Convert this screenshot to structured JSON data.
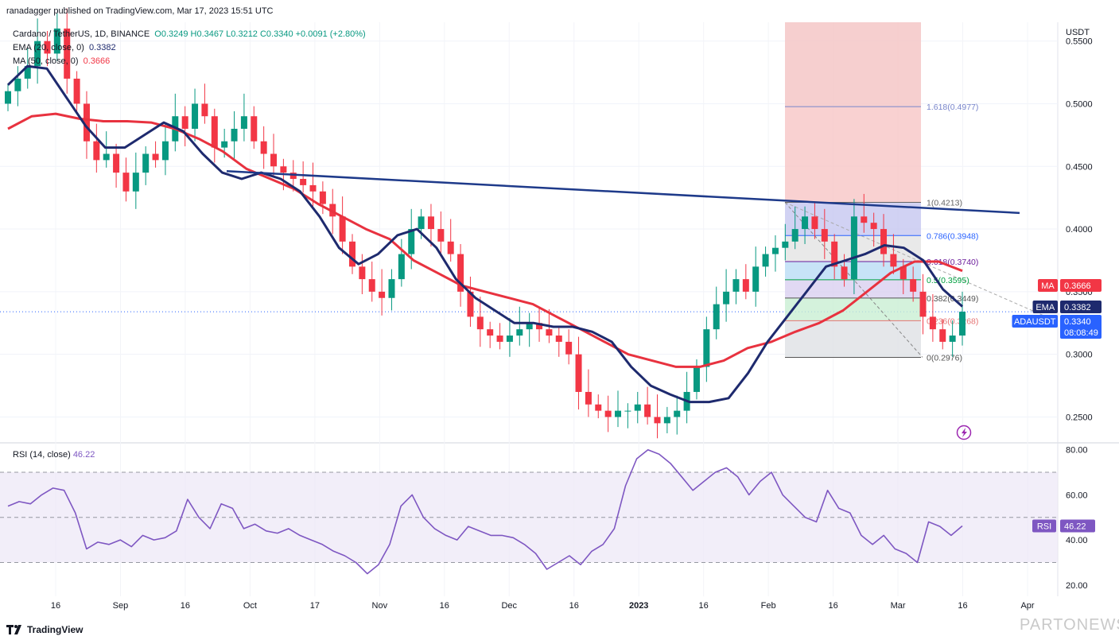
{
  "header": {
    "published": "ranadagger published on TradingView.com, Mar 17, 2023 15:51 UTC"
  },
  "legend": {
    "symbol": "Cardano / TetherUS, 1D, BINANCE",
    "ohlc": "O0.3249 H0.3467 L0.3212 C0.3340 +0.0091 (+2.80%)",
    "ema_label": "EMA (20, close, 0)",
    "ema_value": "0.3382",
    "ma_label": "MA (50, close, 0)",
    "ma_value": "0.3666"
  },
  "rsi_legend": {
    "label": "RSI (14, close)",
    "value": "46.22"
  },
  "branding": {
    "name": "TradingView",
    "watermark": "PARTONEWS.IR"
  },
  "colors": {
    "up": "#089981",
    "down": "#f23645",
    "ema": "#1e2a6e",
    "ma": "#e8323f",
    "trendline": "#1e3a8a",
    "rsi": "#7e57c2",
    "rsi_band": "#ede7f6"
  },
  "chart_data": [
    {
      "type": "candlestick",
      "title": "Cardano / TetherUS, 1D, BINANCE",
      "y_axis_unit": "USDT",
      "y_ticks": [
        "0.5500",
        "0.5000",
        "0.4500",
        "0.4000",
        "0.3500",
        "0.3000",
        "0.2500"
      ],
      "ylim": [
        0.23,
        0.565
      ],
      "x_ticks": [
        "16",
        "Sep",
        "16",
        "Oct",
        "17",
        "Nov",
        "16",
        "Dec",
        "16",
        "2023",
        "16",
        "Feb",
        "16",
        "Mar",
        "16",
        "Apr"
      ],
      "last_close": 0.334,
      "price_tags": [
        {
          "label": "MA",
          "value": "0.3666",
          "color": "#f23645"
        },
        {
          "label": "EMA",
          "value": "0.3382",
          "color": "#1e2a6e"
        },
        {
          "label": "ADAUSDT",
          "value": "0.3340",
          "countdown": "08:08:49",
          "color": "#2962ff"
        }
      ],
      "series": [
        {
          "name": "EMA",
          "values": [
            0.515,
            0.53,
            0.528,
            0.505,
            0.482,
            0.465,
            0.465,
            0.475,
            0.485,
            0.478,
            0.46,
            0.445,
            0.44,
            0.445,
            0.44,
            0.43,
            0.41,
            0.385,
            0.372,
            0.38,
            0.395,
            0.4,
            0.385,
            0.36,
            0.345,
            0.335,
            0.325,
            0.325,
            0.322,
            0.322,
            0.318,
            0.31,
            0.29,
            0.275,
            0.268,
            0.262,
            0.262,
            0.265,
            0.285,
            0.31,
            0.33,
            0.35,
            0.37,
            0.375,
            0.38,
            0.387,
            0.385,
            0.375,
            0.352,
            0.3382
          ]
        },
        {
          "name": "MA",
          "values": [
            0.48,
            0.49,
            0.492,
            0.488,
            0.486,
            0.486,
            0.485,
            0.48,
            0.472,
            0.462,
            0.448,
            0.44,
            0.432,
            0.42,
            0.41,
            0.4,
            0.392,
            0.375,
            0.365,
            0.355,
            0.35,
            0.345,
            0.34,
            0.33,
            0.32,
            0.31,
            0.3,
            0.295,
            0.29,
            0.29,
            0.295,
            0.305,
            0.31,
            0.318,
            0.325,
            0.335,
            0.35,
            0.365,
            0.374,
            0.374,
            0.3666
          ]
        }
      ],
      "trendline": [
        [
          0.4462,
          0.4128
        ]
      ],
      "fibonacci": [
        {
          "label": "1.618(0.4977)",
          "value": 0.4977
        },
        {
          "label": "1(0.4213)",
          "value": 0.4213
        },
        {
          "label": "0.786(0.3948)",
          "value": 0.3948
        },
        {
          "label": "0.618(0.3740)",
          "value": 0.374
        },
        {
          "label": "0.5(0.3595)",
          "value": 0.3595
        },
        {
          "label": "0.382(0.3449)",
          "value": 0.3449
        },
        {
          "label": "0.236(0.3268)",
          "value": 0.3268
        },
        {
          "label": "0(0.2976)",
          "value": 0.2976
        }
      ],
      "candles": [
        0.51,
        0.52,
        0.53,
        0.55,
        0.54,
        0.56,
        0.52,
        0.5,
        0.47,
        0.455,
        0.46,
        0.445,
        0.43,
        0.445,
        0.46,
        0.455,
        0.47,
        0.49,
        0.48,
        0.5,
        0.49,
        0.465,
        0.47,
        0.48,
        0.49,
        0.47,
        0.46,
        0.45,
        0.445,
        0.44,
        0.435,
        0.43,
        0.42,
        0.41,
        0.39,
        0.37,
        0.36,
        0.35,
        0.345,
        0.36,
        0.38,
        0.4,
        0.41,
        0.4,
        0.39,
        0.38,
        0.35,
        0.33,
        0.32,
        0.315,
        0.31,
        0.315,
        0.32,
        0.325,
        0.32,
        0.315,
        0.31,
        0.3,
        0.27,
        0.26,
        0.255,
        0.25,
        0.255,
        0.255,
        0.26,
        0.25,
        0.245,
        0.25,
        0.255,
        0.27,
        0.29,
        0.32,
        0.34,
        0.35,
        0.36,
        0.35,
        0.37,
        0.38,
        0.385,
        0.39,
        0.4,
        0.41,
        0.4,
        0.39,
        0.37,
        0.36,
        0.41,
        0.405,
        0.4,
        0.38,
        0.37,
        0.36,
        0.35,
        0.33,
        0.32,
        0.31,
        0.315,
        0.334
      ]
    },
    {
      "type": "line",
      "title": "RSI (14, close)",
      "y_ticks": [
        "80.00",
        "60.00",
        "40.00",
        "20.00"
      ],
      "ylim": [
        15,
        82
      ],
      "band": [
        30,
        70
      ],
      "midline": 50,
      "last_value": "46.22",
      "series": [
        {
          "name": "RSI",
          "values": [
            55,
            57,
            56,
            60,
            63,
            62,
            52,
            36,
            39,
            38,
            40,
            37,
            42,
            40,
            41,
            44,
            58,
            50,
            45,
            56,
            54,
            45,
            47,
            44,
            43,
            45,
            42,
            40,
            38,
            35,
            33,
            30,
            25,
            29,
            38,
            55,
            60,
            50,
            45,
            42,
            40,
            46,
            44,
            42,
            42,
            41,
            38,
            34,
            27,
            30,
            33,
            29,
            35,
            38,
            45,
            64,
            76,
            80,
            78,
            74,
            68,
            62,
            66,
            70,
            72,
            68,
            60,
            66,
            70,
            60,
            55,
            50,
            48,
            62,
            54,
            52,
            42,
            38,
            42,
            36,
            34,
            30,
            48,
            46,
            42,
            46.22
          ]
        }
      ]
    }
  ]
}
